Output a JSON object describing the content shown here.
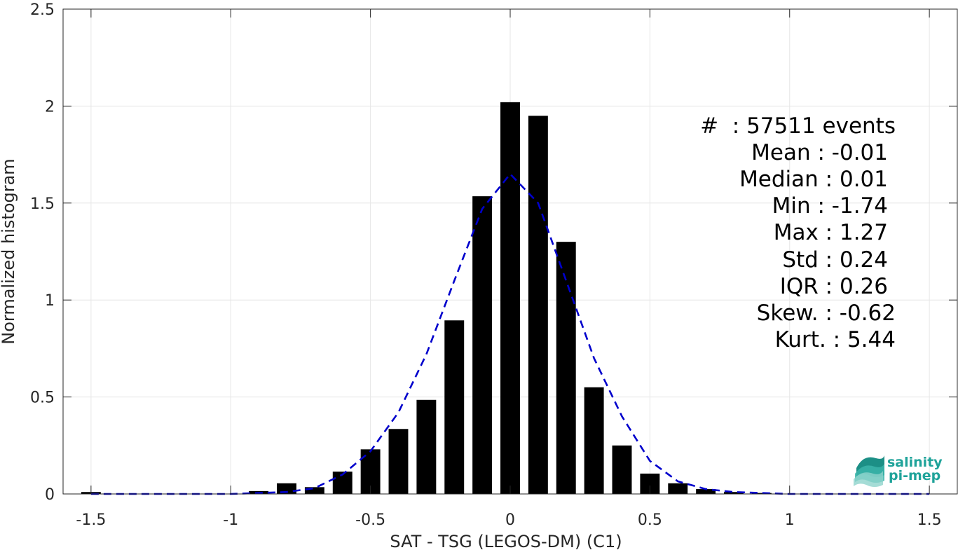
{
  "chart_data": {
    "type": "bar",
    "xlabel": "SAT - TSG (LEGOS-DM) (C1)",
    "ylabel": "Normalized histogram",
    "xlim": [
      -1.6,
      1.6
    ],
    "ylim": [
      0,
      2.5
    ],
    "xticks": [
      -1.5,
      -1,
      -0.5,
      0,
      0.5,
      1,
      1.5
    ],
    "xtick_labels": [
      "-1.5",
      "-1",
      "-0.5",
      "0",
      "0.5",
      "1",
      "1.5"
    ],
    "yticks": [
      0,
      0.5,
      1,
      1.5,
      2,
      2.5
    ],
    "ytick_labels": [
      "0",
      "0.5",
      "1",
      "1.5",
      "2",
      "2.5"
    ],
    "grid": true,
    "bar_color": "#000000",
    "fit_color": "#0000cc",
    "bin_width": 0.1,
    "x": [
      -1.5,
      -0.9,
      -0.8,
      -0.7,
      -0.6,
      -0.5,
      -0.4,
      -0.3,
      -0.2,
      -0.1,
      0.0,
      0.1,
      0.2,
      0.3,
      0.4,
      0.5,
      0.6,
      0.7,
      0.8,
      0.9
    ],
    "values": [
      0.01,
      0.015,
      0.055,
      0.035,
      0.115,
      0.23,
      0.335,
      0.485,
      0.895,
      1.535,
      2.02,
      1.95,
      1.3,
      0.55,
      0.25,
      0.105,
      0.055,
      0.025,
      0.01,
      0.005
    ],
    "fit": {
      "style": "dashed",
      "x": [
        -1.5,
        -1.0,
        -0.9,
        -0.8,
        -0.7,
        -0.6,
        -0.5,
        -0.4,
        -0.3,
        -0.2,
        -0.1,
        0.0,
        0.1,
        0.2,
        0.3,
        0.4,
        0.5,
        0.6,
        0.7,
        0.8,
        0.9,
        1.0,
        1.5
      ],
      "y": [
        0.0,
        0.0,
        0.005,
        0.01,
        0.03,
        0.1,
        0.22,
        0.42,
        0.72,
        1.1,
        1.47,
        1.65,
        1.5,
        1.1,
        0.7,
        0.4,
        0.17,
        0.065,
        0.025,
        0.01,
        0.005,
        0.0,
        0.0
      ]
    }
  },
  "stats": [
    "#  : 57511 events",
    "Mean : -0.01",
    "Median : 0.01",
    "Min : -1.74",
    "Max : 1.27",
    "Std : 0.24",
    "IQR : 0.26",
    "Skew. : -0.62",
    "Kurt. : 5.44"
  ],
  "logo": {
    "line1": "salinity",
    "line2": "pi-mep",
    "color": "#1fa39a"
  }
}
